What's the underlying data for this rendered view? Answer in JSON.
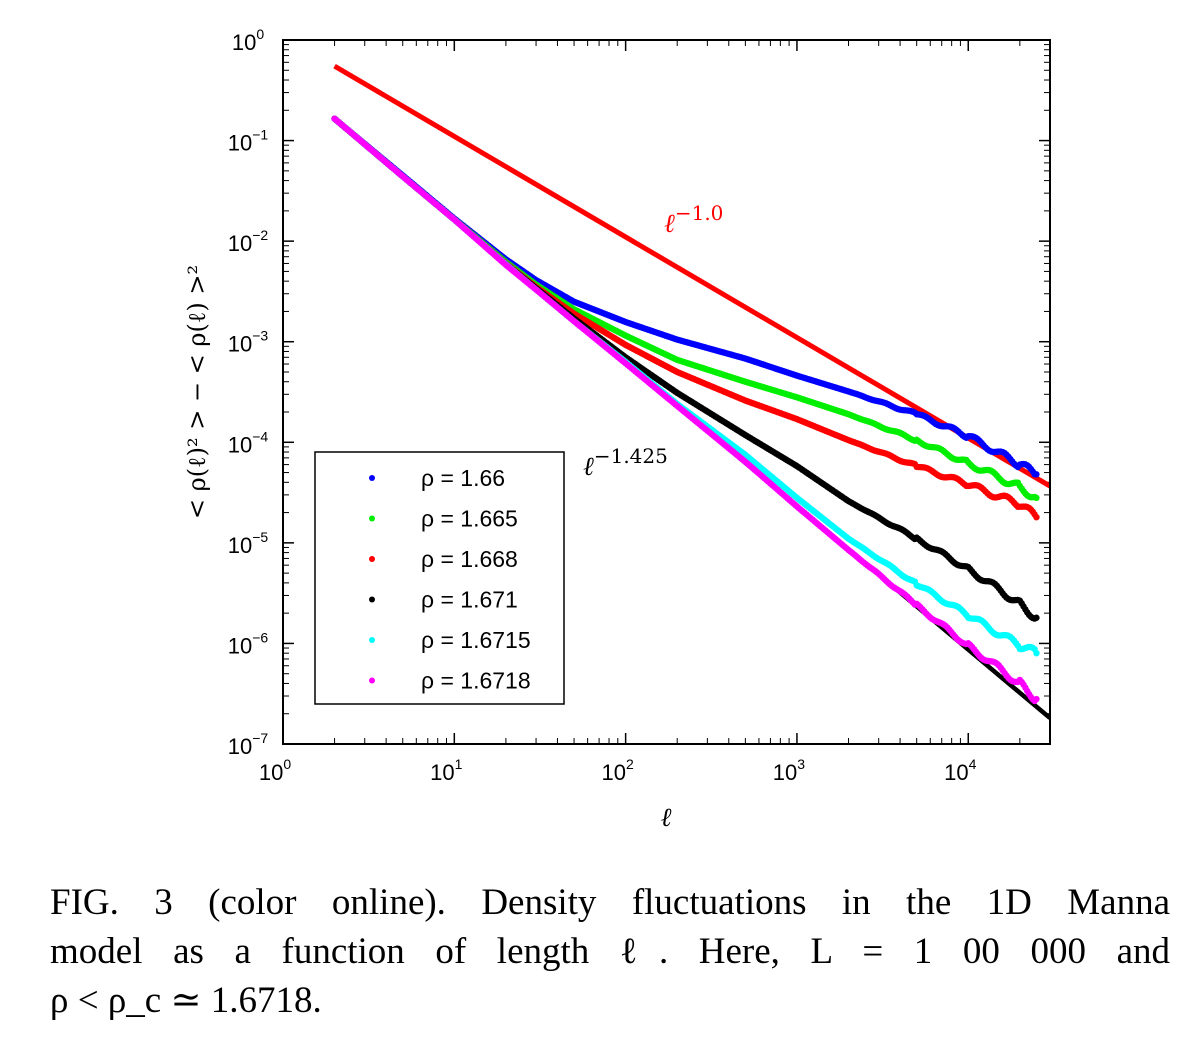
{
  "chart_data": {
    "type": "scatter",
    "xscale": "log",
    "yscale": "log",
    "xlim": [
      1,
      30000
    ],
    "ylim": [
      1e-07,
      1
    ],
    "xlabel": "ℓ",
    "ylabel": "< ρ(ℓ)² > − < ρ(ℓ) >²",
    "x_ticks": [
      {
        "base": "10",
        "exp": "0",
        "value": 1
      },
      {
        "base": "10",
        "exp": "1",
        "value": 10
      },
      {
        "base": "10",
        "exp": "2",
        "value": 100
      },
      {
        "base": "10",
        "exp": "3",
        "value": 1000
      },
      {
        "base": "10",
        "exp": "4",
        "value": 10000
      }
    ],
    "y_ticks": [
      {
        "base": "10",
        "exp": "0",
        "value": 1
      },
      {
        "base": "10",
        "exp": "−1",
        "value": 0.1
      },
      {
        "base": "10",
        "exp": "−2",
        "value": 0.01
      },
      {
        "base": "10",
        "exp": "−3",
        "value": 0.001
      },
      {
        "base": "10",
        "exp": "−4",
        "value": 0.0001
      },
      {
        "base": "10",
        "exp": "−5",
        "value": 1e-05
      },
      {
        "base": "10",
        "exp": "−6",
        "value": 1e-06
      },
      {
        "base": "10",
        "exp": "−7",
        "value": 1e-07
      }
    ],
    "legend_position": "bottom-left",
    "series": [
      {
        "name": "ρ = 1.66",
        "color": "#0000ff",
        "points": [
          [
            2,
            0.165
          ],
          [
            5,
            0.045
          ],
          [
            10,
            0.0168
          ],
          [
            20,
            0.0066
          ],
          [
            30,
            0.0041
          ],
          [
            50,
            0.0025
          ],
          [
            100,
            0.00157
          ],
          [
            200,
            0.00105
          ],
          [
            500,
            0.00068
          ],
          [
            1000,
            0.00046
          ],
          [
            2000,
            0.00032
          ],
          [
            5000,
            0.00019
          ],
          [
            10000,
            0.000115
          ],
          [
            20000,
            6e-05
          ],
          [
            25000,
            4.8e-05
          ]
        ]
      },
      {
        "name": "ρ = 1.665",
        "color": "#00ee00",
        "points": [
          [
            2,
            0.165
          ],
          [
            5,
            0.044
          ],
          [
            10,
            0.0165
          ],
          [
            20,
            0.0062
          ],
          [
            30,
            0.0037
          ],
          [
            50,
            0.0021
          ],
          [
            100,
            0.00115
          ],
          [
            200,
            0.00066
          ],
          [
            500,
            0.0004
          ],
          [
            1000,
            0.00028
          ],
          [
            2000,
            0.00019
          ],
          [
            5000,
            0.000105
          ],
          [
            10000,
            6.2e-05
          ],
          [
            20000,
            3.6e-05
          ],
          [
            25000,
            2.8e-05
          ]
        ]
      },
      {
        "name": "ρ = 1.668",
        "color": "#ff0000",
        "points": [
          [
            2,
            0.165
          ],
          [
            5,
            0.044
          ],
          [
            10,
            0.0164
          ],
          [
            20,
            0.006
          ],
          [
            30,
            0.0035
          ],
          [
            50,
            0.0019
          ],
          [
            100,
            0.00093
          ],
          [
            200,
            0.0005
          ],
          [
            500,
            0.00026
          ],
          [
            1000,
            0.00017
          ],
          [
            2000,
            0.000105
          ],
          [
            5000,
            5.8e-05
          ],
          [
            10000,
            3.8e-05
          ],
          [
            20000,
            2.4e-05
          ],
          [
            25000,
            1.8e-05
          ]
        ]
      },
      {
        "name": "ρ = 1.671",
        "color": "#000000",
        "points": [
          [
            2,
            0.165
          ],
          [
            5,
            0.044
          ],
          [
            10,
            0.0164
          ],
          [
            20,
            0.0059
          ],
          [
            30,
            0.0034
          ],
          [
            50,
            0.0017
          ],
          [
            100,
            0.0007
          ],
          [
            200,
            0.00031
          ],
          [
            500,
            0.000118
          ],
          [
            1000,
            5.8e-05
          ],
          [
            2000,
            2.6e-05
          ],
          [
            5000,
            1.1e-05
          ],
          [
            10000,
            5.5e-06
          ],
          [
            20000,
            2.5e-06
          ],
          [
            25000,
            1.8e-06
          ]
        ]
      },
      {
        "name": "ρ = 1.6715",
        "color": "#00ffff",
        "points": [
          [
            2,
            0.165
          ],
          [
            5,
            0.044
          ],
          [
            10,
            0.0164
          ],
          [
            20,
            0.0059
          ],
          [
            30,
            0.0033
          ],
          [
            50,
            0.0016
          ],
          [
            100,
            0.00063
          ],
          [
            200,
            0.00024
          ],
          [
            500,
            7.5e-05
          ],
          [
            1000,
            2.8e-05
          ],
          [
            2000,
            1.1e-05
          ],
          [
            5000,
            3.9e-06
          ],
          [
            10000,
            1.9e-06
          ],
          [
            20000,
            9.5e-07
          ],
          [
            25000,
            8e-07
          ]
        ]
      },
      {
        "name": "ρ = 1.6718",
        "color": "#ff00ff",
        "points": [
          [
            2,
            0.165
          ],
          [
            5,
            0.044
          ],
          [
            10,
            0.0164
          ],
          [
            20,
            0.0058
          ],
          [
            30,
            0.0033
          ],
          [
            50,
            0.0016
          ],
          [
            100,
            0.00061
          ],
          [
            200,
            0.00023
          ],
          [
            500,
            6.4e-05
          ],
          [
            1000,
            2.3e-05
          ],
          [
            2000,
            8.5e-06
          ],
          [
            5000,
            2.4e-06
          ],
          [
            10000,
            9.5e-07
          ],
          [
            20000,
            4e-07
          ],
          [
            25000,
            2.8e-07
          ]
        ]
      }
    ],
    "reference_lines": [
      {
        "label": "ℓ",
        "exponent_text": "−1.0",
        "color": "#ff0000",
        "points": [
          [
            2,
            0.55
          ],
          [
            30000,
            3.67e-05
          ]
        ]
      },
      {
        "label": "ℓ",
        "exponent_text": "−1.425",
        "color": "#000000",
        "points": [
          [
            2,
            0.165
          ],
          [
            30000,
            1.81e-07
          ]
        ]
      }
    ]
  },
  "caption": {
    "line1": "FIG. 3 (color online).   Density fluctuations in the 1D Manna",
    "line2": "model as a function of length ℓ. Here, L = 1 00 000 and",
    "line3": "ρ < ρ_c ≃ 1.6718."
  }
}
